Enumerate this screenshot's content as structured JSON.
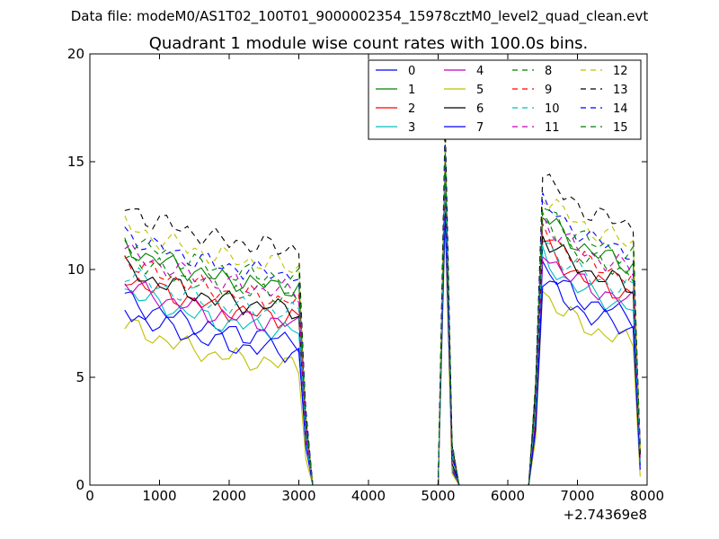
{
  "header": {
    "data_file": "Data file: modeM0/AS1T02_100T01_9000002354_15978cztM0_level2_quad_clean.evt"
  },
  "chart_data": {
    "type": "line",
    "title": "Quadrant 1 module wise count rates with 100.0s bins.",
    "xlabel": "",
    "ylabel": "",
    "xlim": [
      0,
      8000
    ],
    "ylim": [
      0,
      20
    ],
    "x_offset_label": "+2.74369e8",
    "x_ticks": [
      0,
      1000,
      2000,
      3000,
      4000,
      5000,
      6000,
      7000,
      8000
    ],
    "y_ticks": [
      0,
      5,
      10,
      15,
      20
    ],
    "legend_position": "top-right",
    "legend_columns": 4,
    "grid": false,
    "x": [
      500,
      600,
      700,
      800,
      900,
      1000,
      1100,
      1200,
      1300,
      1400,
      1500,
      1600,
      1700,
      1800,
      1900,
      2000,
      2100,
      2200,
      2300,
      2400,
      2500,
      2600,
      2700,
      2800,
      2900,
      3000,
      3100,
      3200,
      3300,
      3400,
      3500,
      3600,
      3700,
      3800,
      3900,
      4000,
      4100,
      4200,
      4300,
      4400,
      4500,
      4600,
      4700,
      4800,
      4900,
      5000,
      5100,
      5200,
      5300,
      5400,
      5500,
      5600,
      5700,
      5800,
      5900,
      6000,
      6100,
      6200,
      6300,
      6400,
      6500,
      6600,
      6700,
      6800,
      6900,
      7000,
      7100,
      7200,
      7300,
      7400,
      7500,
      7600,
      7700,
      7800,
      7900
    ],
    "base_profile": [
      8.5,
      8.3,
      8.2,
      8.0,
      7.9,
      7.8,
      7.7,
      7.6,
      7.5,
      7.4,
      7.3,
      7.2,
      7.1,
      7.0,
      7.0,
      6.9,
      6.9,
      6.8,
      6.8,
      6.7,
      6.7,
      6.7,
      6.6,
      6.6,
      6.6,
      6.5,
      2.0,
      0,
      0,
      0,
      0,
      0,
      0,
      0,
      0,
      0,
      0,
      0,
      0,
      0,
      0,
      0,
      0,
      0,
      0,
      0,
      13.0,
      1.0,
      0,
      0,
      0,
      0,
      0,
      0,
      0,
      0,
      0,
      0,
      0,
      3.0,
      10.0,
      9.6,
      9.3,
      9.0,
      8.8,
      8.6,
      8.4,
      8.2,
      8.1,
      8.0,
      7.9,
      7.8,
      7.7,
      7.6,
      1.0
    ],
    "series": [
      {
        "name": "0",
        "color": "#0000ff",
        "dash": "solid",
        "offset": 0.2
      },
      {
        "name": "1",
        "color": "#008000",
        "dash": "solid",
        "offset": 2.6
      },
      {
        "name": "2",
        "color": "#ff0000",
        "dash": "solid",
        "offset": 1.2
      },
      {
        "name": "3",
        "color": "#00bfbf",
        "dash": "solid",
        "offset": 0.6
      },
      {
        "name": "4",
        "color": "#bf00bf",
        "dash": "solid",
        "offset": 0.9
      },
      {
        "name": "5",
        "color": "#bfbf00",
        "dash": "solid",
        "offset": -1.0
      },
      {
        "name": "6",
        "color": "#000000",
        "dash": "solid",
        "offset": 1.6
      },
      {
        "name": "7",
        "color": "#0000ff",
        "dash": "solid",
        "offset": -0.4
      },
      {
        "name": "8",
        "color": "#008000",
        "dash": "dashed",
        "offset": 2.2
      },
      {
        "name": "9",
        "color": "#ff0000",
        "dash": "dashed",
        "offset": 2.0
      },
      {
        "name": "10",
        "color": "#00bfbf",
        "dash": "dashed",
        "offset": 1.4
      },
      {
        "name": "11",
        "color": "#bf00bf",
        "dash": "dashed",
        "offset": 2.4
      },
      {
        "name": "12",
        "color": "#bfbf00",
        "dash": "dashed",
        "offset": 3.6
      },
      {
        "name": "13",
        "color": "#000000",
        "dash": "dashed",
        "offset": 4.4
      },
      {
        "name": "14",
        "color": "#0000ff",
        "dash": "dashed",
        "offset": 3.2
      },
      {
        "name": "15",
        "color": "#008000",
        "dash": "dashed",
        "offset": 3.0
      }
    ]
  }
}
